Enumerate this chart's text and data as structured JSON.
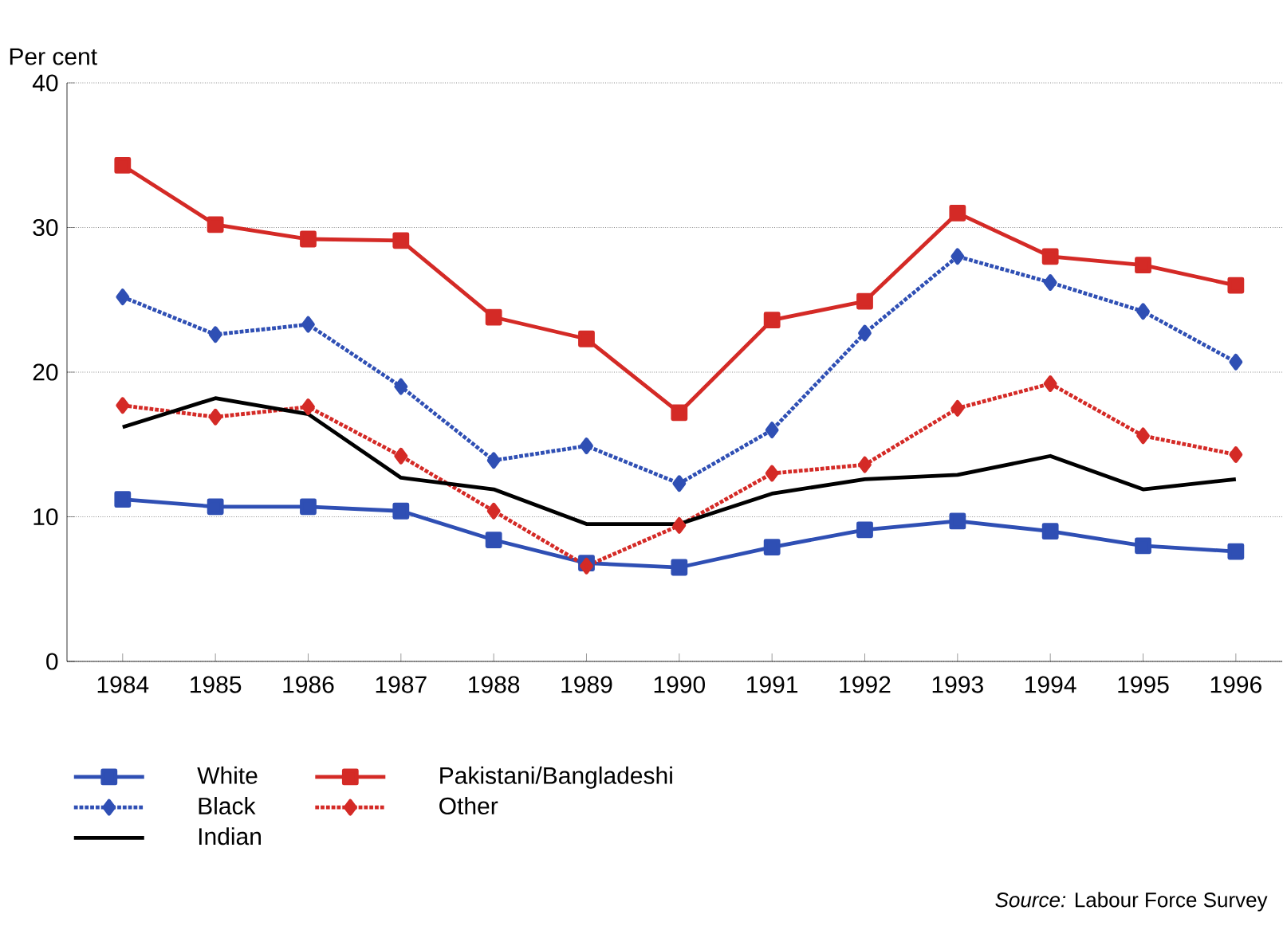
{
  "chart_data": {
    "type": "line",
    "ylabel": "Per cent",
    "x": [
      1984,
      1985,
      1986,
      1987,
      1988,
      1989,
      1990,
      1991,
      1992,
      1993,
      1994,
      1995,
      1996
    ],
    "xlim": [
      1983.4,
      1996.5
    ],
    "xticks": [
      1984,
      1985,
      1986,
      1987,
      1988,
      1989,
      1990,
      1991,
      1992,
      1993,
      1994,
      1995,
      1996
    ],
    "ylim": [
      0,
      40
    ],
    "yticks": [
      0,
      10,
      20,
      30,
      40
    ],
    "grid": "y",
    "legend": "bottom",
    "annotations": [
      "*Source:* Labour Force Survey"
    ],
    "series": [
      {
        "name": "White",
        "color": "#2f4fb4",
        "marker": "square",
        "line_style": "solid",
        "values": [
          11.2,
          10.7,
          10.7,
          10.4,
          8.4,
          6.8,
          6.5,
          7.9,
          9.1,
          9.7,
          9.0,
          8.0,
          7.6
        ]
      },
      {
        "name": "Pakistani/Bangladeshi",
        "color": "#d42a26",
        "marker": "square",
        "line_style": "solid",
        "values": [
          34.3,
          30.2,
          29.2,
          29.1,
          23.8,
          22.3,
          17.2,
          23.6,
          24.9,
          31.0,
          28.0,
          27.4,
          26.0
        ]
      },
      {
        "name": "Black",
        "color": "#2f4fb4",
        "marker": "diamond",
        "line_style": "dotted",
        "values": [
          25.2,
          22.6,
          23.3,
          19.0,
          13.9,
          14.9,
          12.3,
          16.0,
          22.7,
          28.0,
          26.2,
          24.2,
          20.7
        ]
      },
      {
        "name": "Other",
        "color": "#d42a26",
        "marker": "diamond",
        "line_style": "dotted",
        "values": [
          17.7,
          16.9,
          17.6,
          14.2,
          10.4,
          6.6,
          9.4,
          13.0,
          13.6,
          17.5,
          19.2,
          15.6,
          14.3
        ]
      },
      {
        "name": "Indian",
        "color": "#000000",
        "marker": "none",
        "line_style": "solid",
        "values": [
          16.2,
          18.2,
          17.1,
          12.7,
          11.9,
          9.5,
          9.5,
          11.6,
          12.6,
          12.9,
          14.2,
          11.9,
          12.6
        ]
      }
    ]
  }
}
